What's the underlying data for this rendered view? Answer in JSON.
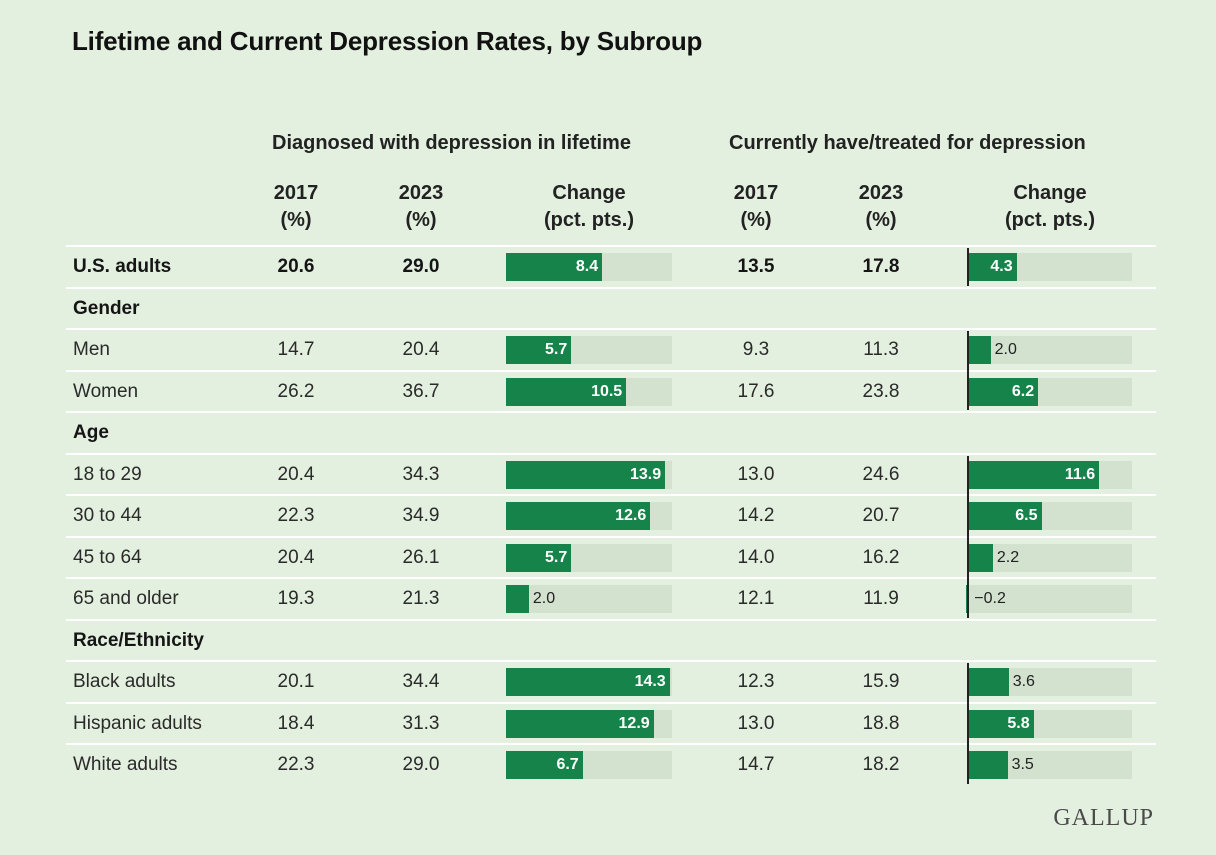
{
  "title": "Lifetime and Current Depression Rates, by Subroup",
  "brand": "GALLUP",
  "groups": {
    "lifetime": "Diagnosed with depression in lifetime",
    "current": "Currently have/treated for depression"
  },
  "columns": {
    "y2017": [
      "2017",
      "(%)"
    ],
    "y2023": [
      "2023",
      "(%)"
    ],
    "change": [
      "Change",
      "(pct. pts.)"
    ]
  },
  "chart_data": {
    "type": "table",
    "title": "Lifetime and Current Depression Rates, by Subroup",
    "columns": [
      "2017 (%)",
      "2023 (%)",
      "Change (pct. pts.)",
      "2017 (%)",
      "2023 (%)",
      "Change (pct. pts.)"
    ],
    "rows": [
      {
        "label": "U.S. adults",
        "kind": "total",
        "lifetime": [
          20.6,
          29.0,
          8.4
        ],
        "current": [
          13.5,
          17.8,
          4.3
        ]
      },
      {
        "label": "Gender",
        "kind": "heading"
      },
      {
        "label": "Men",
        "kind": "data",
        "lifetime": [
          14.7,
          20.4,
          5.7
        ],
        "current": [
          9.3,
          11.3,
          2.0
        ]
      },
      {
        "label": "Women",
        "kind": "data",
        "lifetime": [
          26.2,
          36.7,
          10.5
        ],
        "current": [
          17.6,
          23.8,
          6.2
        ]
      },
      {
        "label": "Age",
        "kind": "heading"
      },
      {
        "label": "18 to 29",
        "kind": "data",
        "lifetime": [
          20.4,
          34.3,
          13.9
        ],
        "current": [
          13.0,
          24.6,
          11.6
        ]
      },
      {
        "label": "30 to 44",
        "kind": "data",
        "lifetime": [
          22.3,
          34.9,
          12.6
        ],
        "current": [
          14.2,
          20.7,
          6.5
        ]
      },
      {
        "label": "45 to 64",
        "kind": "data",
        "lifetime": [
          20.4,
          26.1,
          5.7
        ],
        "current": [
          14.0,
          16.2,
          2.2
        ]
      },
      {
        "label": "65 and older",
        "kind": "data",
        "lifetime": [
          19.3,
          21.3,
          2.0
        ],
        "current": [
          12.1,
          11.9,
          -0.2
        ]
      },
      {
        "label": "Race/Ethnicity",
        "kind": "heading"
      },
      {
        "label": "Black adults",
        "kind": "data",
        "lifetime": [
          20.1,
          34.4,
          14.3
        ],
        "current": [
          12.3,
          15.9,
          3.6
        ]
      },
      {
        "label": "Hispanic adults",
        "kind": "data",
        "lifetime": [
          18.4,
          31.3,
          12.9
        ],
        "current": [
          13.0,
          18.8,
          5.8
        ]
      },
      {
        "label": "White adults",
        "kind": "data",
        "lifetime": [
          22.3,
          29.0,
          6.7
        ],
        "current": [
          14.7,
          18.2,
          3.5
        ]
      }
    ],
    "bar_scale_max": 14.5,
    "bar_color": "#16844a",
    "track_color": "#d2e2cf",
    "background": "#e3f0df"
  }
}
